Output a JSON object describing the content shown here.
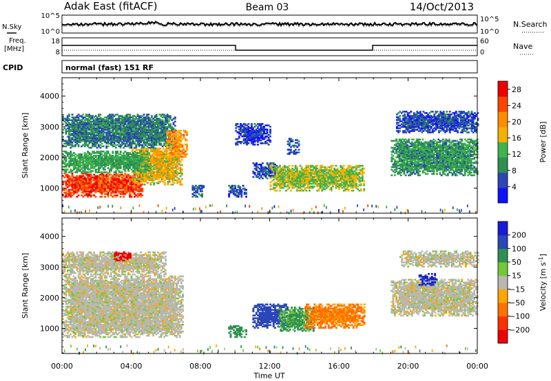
{
  "header": {
    "site": "Adak East (fitACF)",
    "beam": "Beam 03",
    "date": "14/Oct/2013"
  },
  "strip_labels": {
    "nsky": "N.Sky",
    "nsearch": "N.Search",
    "freq_line1": "Freq.",
    "freq_line2": "[MHz]",
    "nave": "Nave",
    "cpid": "CPID",
    "cpid_value": "normal (fast) 151 RF",
    "noise_left_ticks": [
      "10^5",
      "10^0"
    ],
    "noise_right_ticks": [
      "10^5",
      "10^0"
    ],
    "freq_left_ticks": [
      "18",
      "8"
    ],
    "freq_right_ticks": [
      "60",
      "0"
    ]
  },
  "x_axis": {
    "label": "Time UT",
    "ticks": [
      "00:00",
      "04:00",
      "08:00",
      "12:00",
      "16:00",
      "20:00",
      "00:00"
    ]
  },
  "colors": {
    "power_scale": [
      "#1010ff",
      "#2a46b8",
      "#2e8f52",
      "#3fb34d",
      "#f5b000",
      "#ff8c00",
      "#ff4500",
      "#ee0000"
    ],
    "velocity_scale": [
      "#1a1ad9",
      "#2a46b8",
      "#2e8f52",
      "#73c83a",
      "#b8b8b0",
      "#ffa500",
      "#ff7000",
      "#ff3000",
      "#ee0000"
    ]
  },
  "chart_data": [
    {
      "type": "heatmap",
      "panel": "power",
      "xlabel": "Time UT",
      "ylabel": "Slant Range [km]",
      "x_ticks": [
        "00:00",
        "04:00",
        "08:00",
        "12:00",
        "16:00",
        "20:00",
        "00:00"
      ],
      "y_ticks": [
        1000,
        2000,
        3000,
        4000
      ],
      "xlim_hours": [
        0,
        24
      ],
      "ylim_km": [
        180,
        4600
      ],
      "colorbar": {
        "label": "Power [dB]",
        "ticks": [
          4,
          8,
          12,
          16,
          20,
          24,
          28
        ],
        "range": [
          0,
          30
        ]
      },
      "regions": [
        {
          "t0": 0.0,
          "t1": 4.6,
          "r0": 700,
          "r1": 1500,
          "v": 27
        },
        {
          "t0": 4.0,
          "t1": 6.9,
          "r0": 1100,
          "r1": 2300,
          "v": 18
        },
        {
          "t0": 0.0,
          "t1": 5.0,
          "r0": 1500,
          "r1": 2200,
          "v": 12
        },
        {
          "t0": 0.0,
          "t1": 6.5,
          "r0": 2300,
          "r1": 3400,
          "v": 9
        },
        {
          "t0": 6.0,
          "t1": 7.2,
          "r0": 2000,
          "r1": 2900,
          "v": 21
        },
        {
          "t0": 7.5,
          "t1": 8.2,
          "r0": 700,
          "r1": 1100,
          "v": 7
        },
        {
          "t0": 9.6,
          "t1": 10.6,
          "r0": 700,
          "r1": 1100,
          "v": 6
        },
        {
          "t0": 11.0,
          "t1": 12.5,
          "r0": 1300,
          "r1": 1800,
          "v": 6
        },
        {
          "t0": 12.0,
          "t1": 17.4,
          "r0": 900,
          "r1": 1750,
          "v": 16
        },
        {
          "t0": 10.0,
          "t1": 12.0,
          "r0": 2400,
          "r1": 3100,
          "v": 5
        },
        {
          "t0": 13.0,
          "t1": 13.7,
          "r0": 2100,
          "r1": 2600,
          "v": 6
        },
        {
          "t0": 19.0,
          "t1": 24.0,
          "r0": 1400,
          "r1": 2600,
          "v": 11
        },
        {
          "t0": 19.3,
          "t1": 24.0,
          "r0": 2800,
          "r1": 3500,
          "v": 6
        }
      ]
    },
    {
      "type": "heatmap",
      "panel": "velocity",
      "xlabel": "Time UT",
      "ylabel": "Slant Range [km]",
      "x_ticks": [
        "00:00",
        "04:00",
        "08:00",
        "12:00",
        "16:00",
        "20:00",
        "00:00"
      ],
      "y_ticks": [
        1000,
        2000,
        3000,
        4000
      ],
      "xlim_hours": [
        0,
        24
      ],
      "ylim_km": [
        180,
        4600
      ],
      "colorbar": {
        "label": "Velocity [m s^-1]",
        "ticks": [
          200,
          100,
          50,
          15,
          -15,
          -50,
          -100,
          -200
        ]
      },
      "regions": [
        {
          "t0": 0.0,
          "t1": 7.0,
          "r0": 700,
          "r1": 2700,
          "v": 0
        },
        {
          "t0": 0.0,
          "t1": 6.0,
          "r0": 2700,
          "r1": 3500,
          "v": 0
        },
        {
          "t0": 3.0,
          "t1": 4.0,
          "r0": 3200,
          "r1": 3500,
          "v": -180
        },
        {
          "t0": 9.6,
          "t1": 10.6,
          "r0": 700,
          "r1": 1100,
          "v": 50
        },
        {
          "t0": 11.0,
          "t1": 13.0,
          "r0": 1000,
          "r1": 1800,
          "v": 120
        },
        {
          "t0": 12.5,
          "t1": 14.5,
          "r0": 900,
          "r1": 1700,
          "v": 40
        },
        {
          "t0": 14.0,
          "t1": 17.5,
          "r0": 1000,
          "r1": 1800,
          "v": -60
        },
        {
          "t0": 19.0,
          "t1": 24.0,
          "r0": 1400,
          "r1": 2600,
          "v": 0
        },
        {
          "t0": 20.6,
          "t1": 21.6,
          "r0": 2400,
          "r1": 2800,
          "v": 150
        },
        {
          "t0": 19.5,
          "t1": 24.0,
          "r0": 3000,
          "r1": 3500,
          "v": 0
        }
      ]
    }
  ]
}
